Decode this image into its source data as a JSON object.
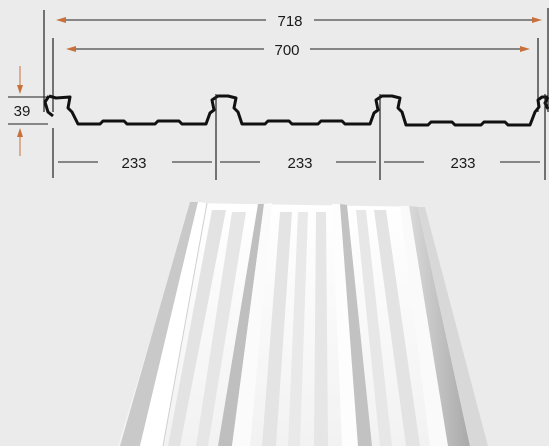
{
  "colors": {
    "background": "#ebebeb",
    "profile_stroke": "#111111",
    "dimension_line": "#222222",
    "arrow_accent": "#c8703a",
    "sheet_face": "#f7f7f7",
    "sheet_shadow": "#bdbdbd"
  },
  "dimensions": {
    "overall_width": "718",
    "cover_width": "700",
    "rib_height": "39",
    "rib_pitch_1": "233",
    "rib_pitch_2": "233",
    "rib_pitch_3": "233"
  }
}
